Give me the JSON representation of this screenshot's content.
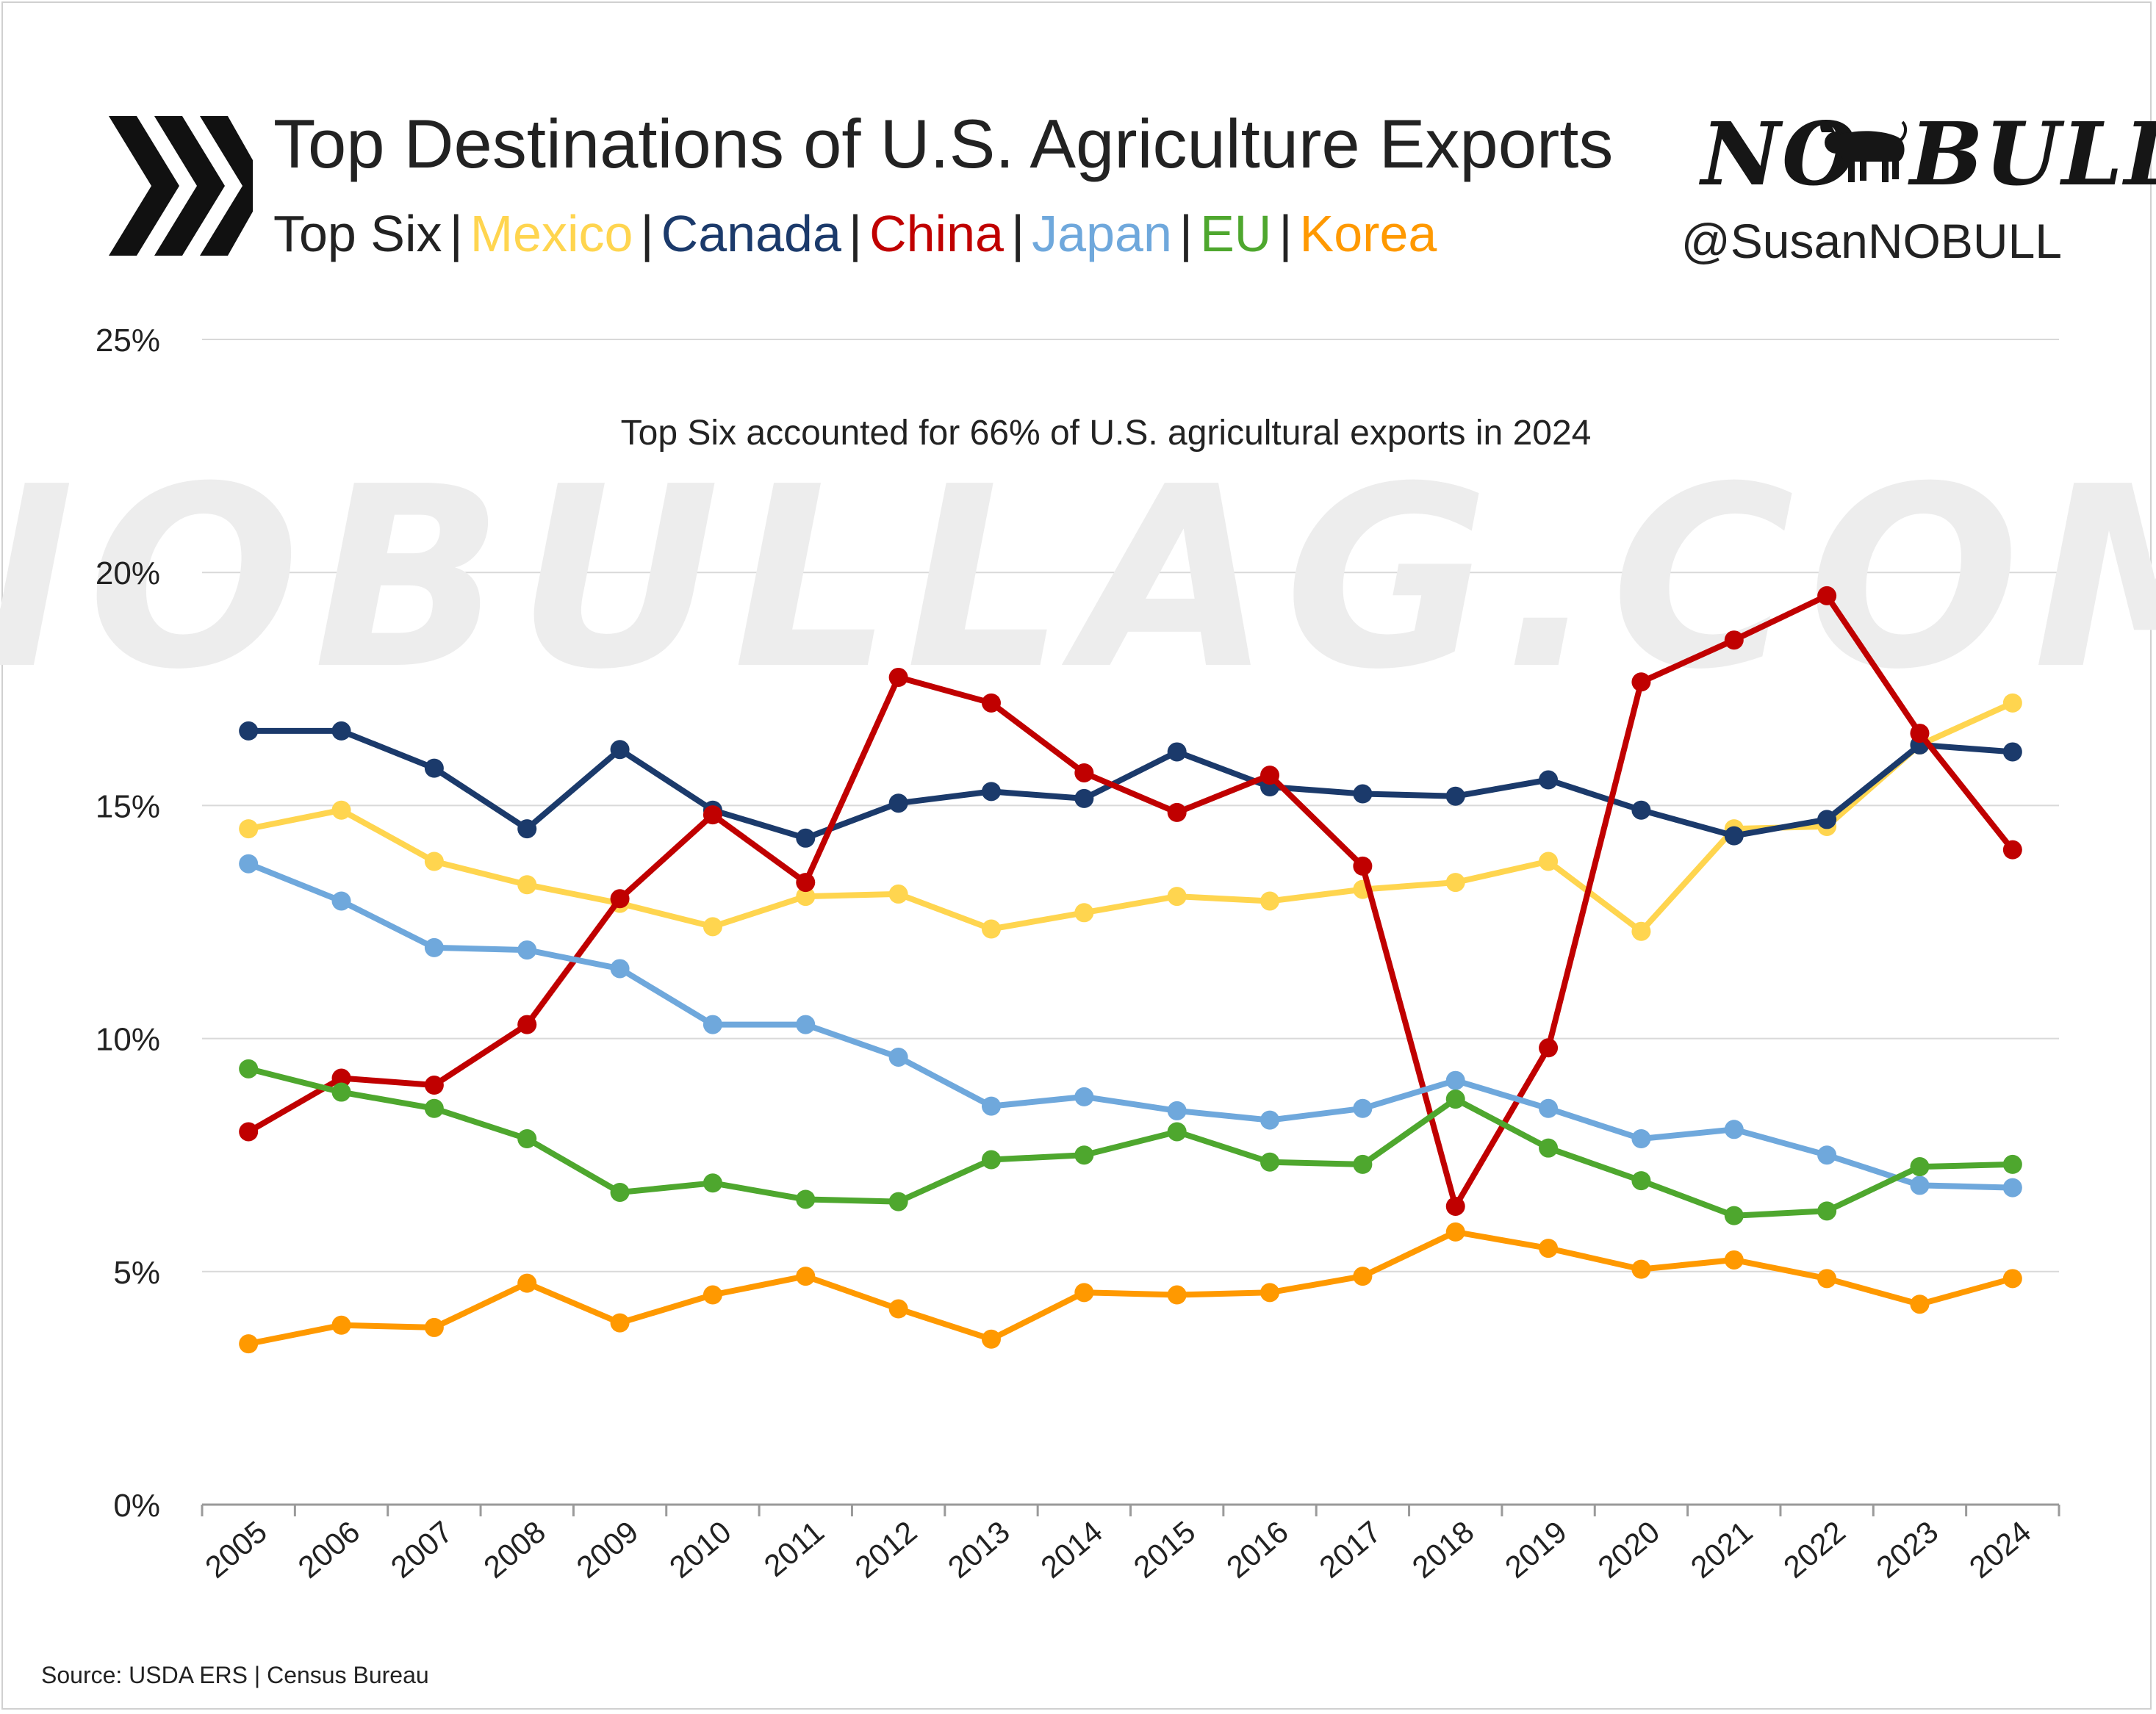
{
  "header": {
    "title": "Top Destinations of U.S. Agriculture Exports",
    "legend_prefix": "Top Six",
    "separator": "|",
    "logo_left": "NO",
    "logo_right": "BULL",
    "handle": "@SusanNOBULL",
    "chevron_icon": "triple-chevron-icon",
    "bull_icon": "bull-icon"
  },
  "watermark": "NOBULLAG.COM",
  "source": "Source: USDA ERS | Census Bureau",
  "chart_data": {
    "type": "line",
    "annotation": "Top Six accounted for 66% of U.S. agricultural exports in 2024",
    "xlabel": "",
    "ylabel": "",
    "ylim": [
      0,
      25
    ],
    "y_ticks": [
      0,
      5,
      10,
      15,
      20,
      25
    ],
    "y_tick_labels": [
      "0%",
      "5%",
      "10%",
      "15%",
      "20%",
      "25%"
    ],
    "grid": true,
    "x": [
      "2005",
      "2006",
      "2007",
      "2008",
      "2009",
      "2010",
      "2011",
      "2012",
      "2013",
      "2014",
      "2015",
      "2016",
      "2017",
      "2018",
      "2019",
      "2020",
      "2021",
      "2022",
      "2023",
      "2024"
    ],
    "series": [
      {
        "name": "Mexico",
        "color": "#FFD54F",
        "values": [
          14.5,
          14.9,
          13.8,
          13.3,
          12.9,
          12.4,
          13.05,
          13.1,
          12.35,
          12.7,
          13.05,
          12.95,
          13.2,
          13.35,
          13.8,
          12.3,
          14.5,
          14.55,
          16.3,
          17.2
        ]
      },
      {
        "name": "Canada",
        "color": "#1B3A6B",
        "values": [
          16.6,
          16.6,
          15.8,
          14.5,
          16.2,
          14.9,
          14.3,
          15.05,
          15.3,
          15.15,
          16.15,
          15.4,
          15.25,
          15.2,
          15.55,
          14.9,
          14.35,
          14.7,
          16.3,
          16.15
        ]
      },
      {
        "name": "China",
        "color": "#C00000",
        "values": [
          8.0,
          9.15,
          9.0,
          10.3,
          13.0,
          14.8,
          13.35,
          17.75,
          17.2,
          15.7,
          14.85,
          15.65,
          13.7,
          6.4,
          9.8,
          17.65,
          18.55,
          19.5,
          16.55,
          14.05
        ]
      },
      {
        "name": "Japan",
        "color": "#6FA8DC",
        "values": [
          13.75,
          12.95,
          11.95,
          11.9,
          11.5,
          10.3,
          10.3,
          9.6,
          8.55,
          8.75,
          8.45,
          8.25,
          8.5,
          9.1,
          8.5,
          7.85,
          8.05,
          7.5,
          6.85,
          6.8
        ]
      },
      {
        "name": "EU",
        "color": "#4EA72E",
        "values": [
          9.35,
          8.85,
          8.5,
          7.85,
          6.7,
          6.9,
          6.55,
          6.5,
          7.4,
          7.5,
          8.0,
          7.35,
          7.3,
          8.7,
          7.65,
          6.95,
          6.2,
          6.3,
          7.25,
          7.3
        ]
      },
      {
        "name": "Korea",
        "color": "#FF9900",
        "values": [
          3.45,
          3.85,
          3.8,
          4.75,
          3.9,
          4.5,
          4.9,
          4.2,
          3.55,
          4.55,
          4.5,
          4.55,
          4.9,
          5.85,
          5.5,
          5.05,
          5.25,
          4.85,
          4.3,
          4.85
        ]
      }
    ]
  }
}
